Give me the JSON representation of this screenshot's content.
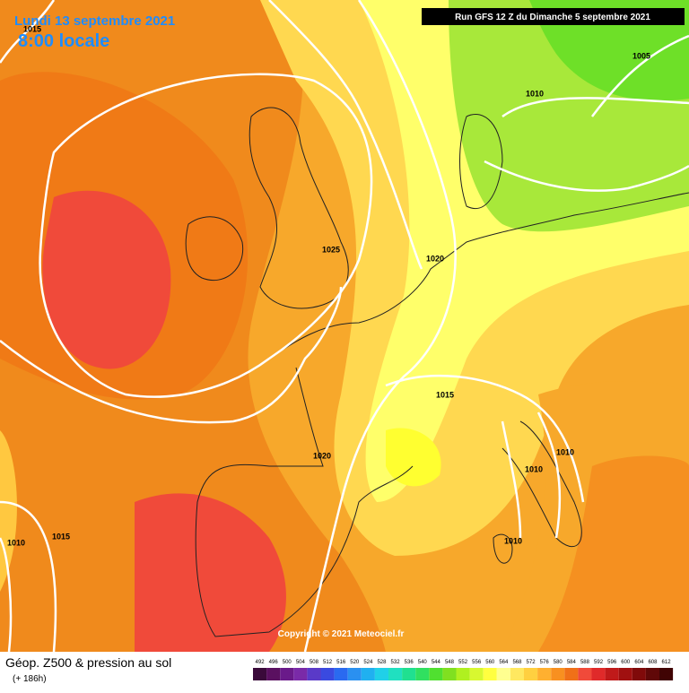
{
  "header": {
    "date": "Lundi 13 septembre 2021",
    "time": "8:00 locale",
    "run": "Run GFS 12 Z du Dimanche 5 septembre 2021"
  },
  "isobar_labels": [
    "1015",
    "1005",
    "1010",
    "1025",
    "1020",
    "1015",
    "1020",
    "1010",
    "1010",
    "1010",
    "1010",
    "1015"
  ],
  "copyright": "Copyright © 2021 Meteociel.fr",
  "footer": {
    "title": "Géop. Z500 & pression au sol",
    "lead": "(+ 186h)"
  },
  "legend": {
    "values": [
      492,
      496,
      500,
      504,
      508,
      512,
      516,
      520,
      524,
      528,
      532,
      536,
      540,
      544,
      548,
      552,
      556,
      560,
      564,
      568,
      572,
      576,
      580,
      584,
      588,
      592,
      596,
      600,
      604,
      608,
      612
    ],
    "colors": [
      "#3a0a3a",
      "#5a1060",
      "#6a1a8a",
      "#7a2aa8",
      "#5a3ac8",
      "#3a4ae0",
      "#2a6af0",
      "#2a90f0",
      "#20b0f0",
      "#20d0e8",
      "#20e0c0",
      "#20e090",
      "#30e060",
      "#50e030",
      "#80e020",
      "#b0f020",
      "#d8f830",
      "#ffff40",
      "#ffff90",
      "#ffe860",
      "#ffd040",
      "#ffb030",
      "#f89020",
      "#f07018",
      "#f04a3a",
      "#e02a2a",
      "#c01a1a",
      "#a01010",
      "#800a0a",
      "#600808",
      "#400404"
    ]
  }
}
